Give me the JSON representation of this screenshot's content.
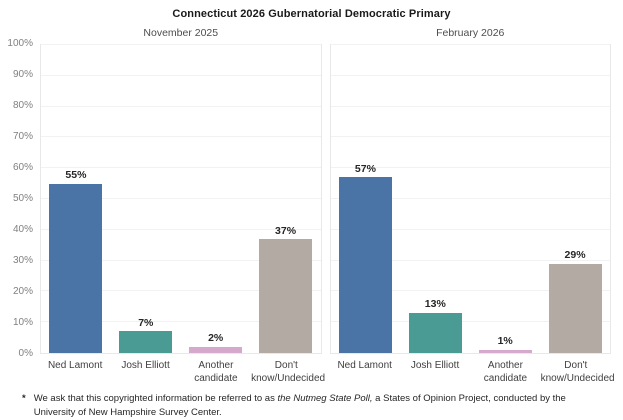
{
  "chart_data": {
    "type": "bar",
    "title": "Connecticut 2026 Gubernatorial Democratic Primary",
    "categories": [
      "Ned Lamont",
      "Josh Elliott",
      "Another candidate",
      "Don't know/Undecided"
    ],
    "bar_colors": [
      "#4A74A5",
      "#499B93",
      "#D5A8CC",
      "#B4AAA4"
    ],
    "panels": [
      {
        "label": "November 2025",
        "values": [
          55,
          7,
          2,
          37
        ],
        "value_labels": [
          "55%",
          "7%",
          "2%",
          "37%"
        ]
      },
      {
        "label": "February 2026",
        "values": [
          57,
          13,
          1,
          29
        ],
        "value_labels": [
          "57%",
          "13%",
          "1%",
          "29%"
        ]
      }
    ],
    "ylim": [
      0,
      100
    ],
    "yticks": [
      "0%",
      "10%",
      "20%",
      "30%",
      "40%",
      "50%",
      "60%",
      "70%",
      "80%",
      "90%",
      "100%"
    ],
    "grid": true,
    "legend": "none",
    "xlabel": "",
    "ylabel": ""
  },
  "footnote": {
    "marker": "*",
    "pre_italic": "We ask that this copyrighted information be referred to as ",
    "italic": "the Nutmeg State Poll,",
    "post_italic": " a States of Opinion Project, conducted by the University of New Hampshire Survey Center."
  }
}
